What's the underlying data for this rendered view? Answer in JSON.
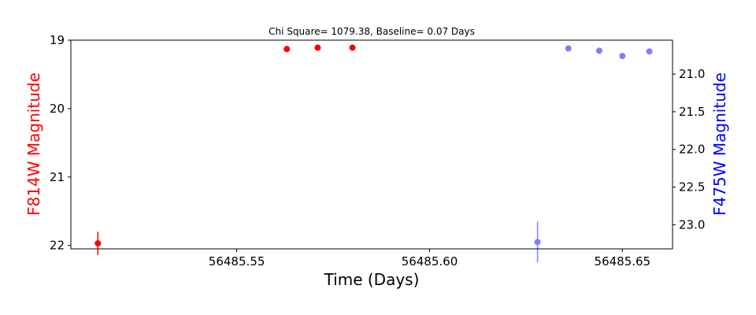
{
  "chart_data": {
    "type": "scatter",
    "title": "Chi Square= 1079.38, Baseline= 0.07 Days",
    "xlabel": "Time (Days)",
    "ylabel_left": "F814W Magnitude",
    "ylabel_right": "F475W Magnitude",
    "xlim": [
      56485.507,
      56485.663
    ],
    "ylim_left": [
      22.05,
      19.0
    ],
    "ylim_right": [
      23.32,
      20.55
    ],
    "x_ticks": [
      {
        "value": 56485.55,
        "label": "56485.55"
      },
      {
        "value": 56485.6,
        "label": "56485.60"
      },
      {
        "value": 56485.65,
        "label": "56485.65"
      }
    ],
    "y_ticks_left": [
      {
        "value": 19,
        "label": "19"
      },
      {
        "value": 20,
        "label": "20"
      },
      {
        "value": 21,
        "label": "21"
      },
      {
        "value": 22,
        "label": "22"
      }
    ],
    "y_ticks_right": [
      {
        "value": 21.0,
        "label": "21.0"
      },
      {
        "value": 21.5,
        "label": "21.5"
      },
      {
        "value": 22.0,
        "label": "22.0"
      },
      {
        "value": 22.5,
        "label": "22.5"
      },
      {
        "value": 23.0,
        "label": "23.0"
      }
    ],
    "grid": false,
    "series": [
      {
        "axis": "left",
        "color": "#ff0000",
        "alpha": 1.0,
        "points": [
          {
            "x": 56485.514,
            "y": 21.97,
            "err": 0.17
          },
          {
            "x": 56485.563,
            "y": 19.13,
            "err": 0.0
          },
          {
            "x": 56485.571,
            "y": 19.11,
            "err": 0.0
          },
          {
            "x": 56485.58,
            "y": 19.11,
            "err": 0.0
          }
        ]
      },
      {
        "axis": "right",
        "color": "#0000ff",
        "alpha": 0.5,
        "points": [
          {
            "x": 56485.628,
            "y": 23.23,
            "err": 0.27
          },
          {
            "x": 56485.636,
            "y": 20.66,
            "err": 0.0
          },
          {
            "x": 56485.644,
            "y": 20.69,
            "err": 0.0
          },
          {
            "x": 56485.65,
            "y": 20.76,
            "err": 0.0
          },
          {
            "x": 56485.657,
            "y": 20.7,
            "err": 0.0
          }
        ]
      }
    ]
  }
}
